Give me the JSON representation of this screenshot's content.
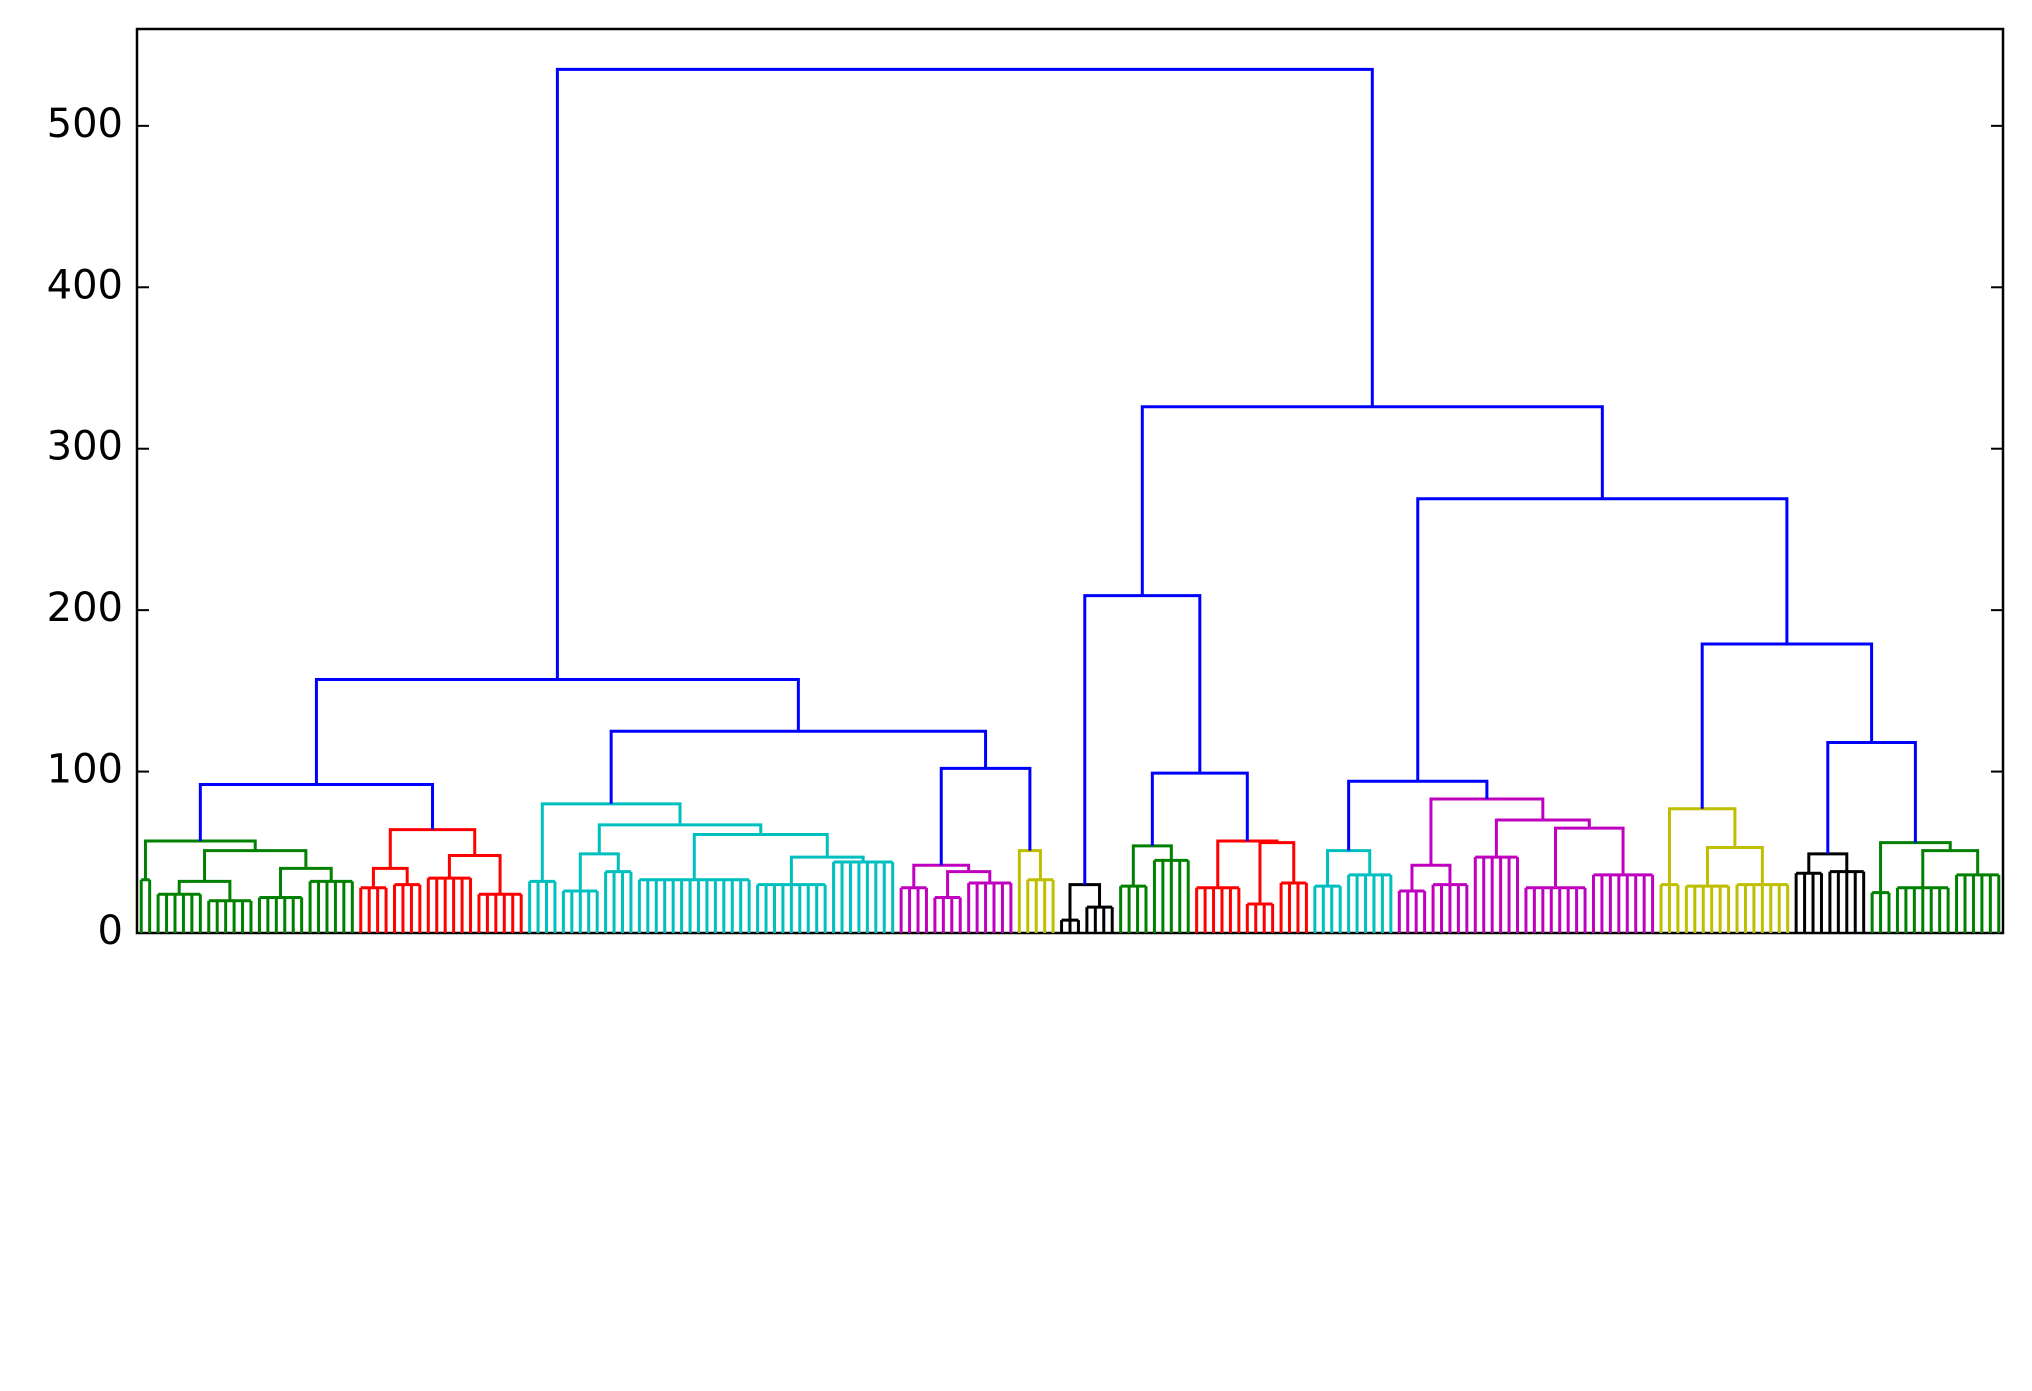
{
  "chart_data": {
    "type": "dendrogram",
    "ylim": [
      0,
      560
    ],
    "yticks": [
      0,
      100,
      200,
      300,
      400,
      500
    ],
    "tree": {
      "height": 535,
      "color": "#0000ff",
      "children": [
        {
          "height": 157,
          "children": [
            {
              "height": 92,
              "children": [
                {
                  "height": 57,
                  "color": "#008000",
                  "children": [
                    {
                      "leaves": 2,
                      "height": 33
                    },
                    {
                      "height": 51,
                      "children": [
                        {
                          "height": 32,
                          "children": [
                            {
                              "leaves": 6,
                              "height": 24
                            },
                            {
                              "leaves": 6,
                              "height": 20
                            }
                          ]
                        },
                        {
                          "height": 40,
                          "children": [
                            {
                              "leaves": 6,
                              "height": 22
                            },
                            {
                              "leaves": 6,
                              "height": 32
                            }
                          ]
                        }
                      ]
                    }
                  ]
                },
                {
                  "height": 64,
                  "color": "#ff0000",
                  "children": [
                    {
                      "height": 40,
                      "children": [
                        {
                          "leaves": 4,
                          "height": 28
                        },
                        {
                          "leaves": 4,
                          "height": 30
                        }
                      ]
                    },
                    {
                      "height": 48,
                      "children": [
                        {
                          "leaves": 6,
                          "height": 34
                        },
                        {
                          "leaves": 6,
                          "height": 24
                        }
                      ]
                    }
                  ]
                }
              ]
            },
            {
              "height": 125,
              "children": [
                {
                  "height": 80,
                  "color": "#00bfbf",
                  "children": [
                    {
                      "leaves": 4,
                      "height": 32
                    },
                    {
                      "height": 67,
                      "children": [
                        {
                          "height": 49,
                          "children": [
                            {
                              "leaves": 5,
                              "height": 26
                            },
                            {
                              "leaves": 4,
                              "height": 38
                            }
                          ]
                        },
                        {
                          "height": 61,
                          "children": [
                            {
                              "leaves": 14,
                              "height": 33
                            },
                            {
                              "height": 47,
                              "children": [
                                {
                                  "leaves": 9,
                                  "height": 30
                                },
                                {
                                  "leaves": 8,
                                  "height": 44
                                }
                              ]
                            }
                          ]
                        }
                      ]
                    }
                  ]
                },
                {
                  "height": 102,
                  "children": [
                    {
                      "height": 42,
                      "color": "#bf00bf",
                      "children": [
                        {
                          "leaves": 4,
                          "height": 28
                        },
                        {
                          "height": 38,
                          "children": [
                            {
                              "leaves": 4,
                              "height": 22
                            },
                            {
                              "leaves": 6,
                              "height": 31
                            }
                          ]
                        }
                      ]
                    },
                    {
                      "height": 51,
                      "color": "#bfbf00",
                      "children": [
                        {
                          "leaves": 1,
                          "height": 0
                        },
                        {
                          "leaves": 4,
                          "height": 33
                        }
                      ]
                    }
                  ]
                }
              ]
            }
          ]
        },
        {
          "height": 326,
          "children": [
            {
              "height": 209,
              "children": [
                {
                  "height": 30,
                  "color": "#000000",
                  "children": [
                    {
                      "leaves": 3,
                      "height": 8
                    },
                    {
                      "leaves": 4,
                      "height": 16
                    }
                  ]
                },
                {
                  "height": 99,
                  "children": [
                    {
                      "height": 54,
                      "color": "#008000",
                      "children": [
                        {
                          "leaves": 4,
                          "height": 29
                        },
                        {
                          "leaves": 5,
                          "height": 45
                        }
                      ]
                    },
                    {
                      "height": 57,
                      "color": "#ff0000",
                      "children": [
                        {
                          "leaves": 6,
                          "height": 28
                        },
                        {
                          "height": 56,
                          "children": [
                            {
                              "leaves": 4,
                              "height": 18
                            },
                            {
                              "leaves": 4,
                              "height": 31
                            }
                          ]
                        }
                      ]
                    }
                  ]
                }
              ]
            },
            {
              "height": 269,
              "children": [
                {
                  "height": 94,
                  "children": [
                    {
                      "height": 51,
                      "color": "#00bfbf",
                      "children": [
                        {
                          "leaves": 4,
                          "height": 29
                        },
                        {
                          "leaves": 6,
                          "height": 36
                        }
                      ]
                    },
                    {
                      "height": 83,
                      "color": "#bf00bf",
                      "children": [
                        {
                          "height": 42,
                          "children": [
                            {
                              "leaves": 4,
                              "height": 26
                            },
                            {
                              "leaves": 5,
                              "height": 30
                            }
                          ]
                        },
                        {
                          "height": 70,
                          "children": [
                            {
                              "leaves": 6,
                              "height": 47
                            },
                            {
                              "height": 65,
                              "children": [
                                {
                                  "leaves": 8,
                                  "height": 28
                                },
                                {
                                  "leaves": 8,
                                  "height": 36
                                }
                              ]
                            }
                          ]
                        }
                      ]
                    }
                  ]
                },
                {
                  "height": 179,
                  "children": [
                    {
                      "height": 77,
                      "color": "#bfbf00",
                      "children": [
                        {
                          "leaves": 3,
                          "height": 30
                        },
                        {
                          "height": 53,
                          "children": [
                            {
                              "leaves": 6,
                              "height": 29
                            },
                            {
                              "leaves": 7,
                              "height": 30
                            }
                          ]
                        }
                      ]
                    },
                    {
                      "height": 118,
                      "children": [
                        {
                          "height": 49,
                          "color": "#000000",
                          "children": [
                            {
                              "leaves": 4,
                              "height": 37
                            },
                            {
                              "leaves": 5,
                              "height": 38
                            }
                          ]
                        },
                        {
                          "height": 56,
                          "color": "#008000",
                          "children": [
                            {
                              "leaves": 3,
                              "height": 25
                            },
                            {
                              "height": 51,
                              "children": [
                                {
                                  "leaves": 7,
                                  "height": 28
                                },
                                {
                                  "leaves": 6,
                                  "height": 36
                                }
                              ]
                            }
                          ]
                        }
                      ]
                    }
                  ]
                }
              ]
            }
          ]
        }
      ]
    }
  }
}
